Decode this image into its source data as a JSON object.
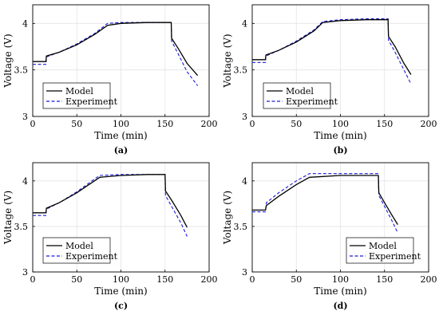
{
  "chart_data": [
    {
      "type": "line",
      "panel_label": "(a)",
      "xlabel": "Time (min)",
      "ylabel": "Voltage (V)",
      "xlim": [
        0,
        200
      ],
      "ylim": [
        3,
        4.2
      ],
      "xticks": [
        0,
        50,
        100,
        150,
        200
      ],
      "yticks": [
        3,
        3.5,
        4
      ],
      "ytick_labels": [
        "3",
        "3.5",
        "4"
      ],
      "grid": true,
      "legend_position": "lower-left",
      "series": [
        {
          "name": "Model",
          "color": "#000000",
          "dashed": false,
          "x": [
            0,
            15,
            15.5,
            30,
            50,
            70,
            85,
            100,
            130,
            157,
            157.5,
            165,
            175,
            187
          ],
          "y": [
            3.59,
            3.59,
            3.65,
            3.69,
            3.77,
            3.88,
            3.98,
            4.0,
            4.01,
            4.01,
            3.84,
            3.73,
            3.57,
            3.44
          ]
        },
        {
          "name": "Experiment",
          "color": "#1a1adc",
          "dashed": true,
          "x": [
            0,
            15,
            15.5,
            30,
            50,
            70,
            85,
            100,
            130,
            157,
            157.5,
            165,
            175,
            187
          ],
          "y": [
            3.56,
            3.56,
            3.64,
            3.69,
            3.78,
            3.89,
            4.0,
            4.01,
            4.01,
            4.01,
            3.81,
            3.67,
            3.48,
            3.33
          ]
        }
      ]
    },
    {
      "type": "line",
      "panel_label": "(b)",
      "xlabel": "Time (min)",
      "ylabel": "Voltage (V)",
      "xlim": [
        0,
        200
      ],
      "ylim": [
        3,
        4.2
      ],
      "xticks": [
        0,
        50,
        100,
        150,
        200
      ],
      "yticks": [
        3,
        3.5,
        4
      ],
      "ytick_labels": [
        "3",
        "3.5",
        "4"
      ],
      "grid": true,
      "legend_position": "lower-left",
      "series": [
        {
          "name": "Model",
          "color": "#000000",
          "dashed": false,
          "x": [
            0,
            15,
            15.5,
            30,
            50,
            70,
            80,
            100,
            130,
            154,
            154.5,
            162,
            172,
            180
          ],
          "y": [
            3.61,
            3.61,
            3.66,
            3.71,
            3.8,
            3.92,
            4.01,
            4.03,
            4.04,
            4.04,
            3.86,
            3.75,
            3.57,
            3.45
          ]
        },
        {
          "name": "Experiment",
          "color": "#1a1adc",
          "dashed": true,
          "x": [
            0,
            15,
            15.5,
            30,
            50,
            70,
            80,
            100,
            130,
            154,
            154.5,
            162,
            172,
            180
          ],
          "y": [
            3.58,
            3.58,
            3.65,
            3.71,
            3.81,
            3.93,
            4.02,
            4.04,
            4.05,
            4.05,
            3.82,
            3.69,
            3.5,
            3.35
          ]
        }
      ]
    },
    {
      "type": "line",
      "panel_label": "(c)",
      "xlabel": "Time (min)",
      "ylabel": "Voltage (V)",
      "xlim": [
        0,
        200
      ],
      "ylim": [
        3,
        4.2
      ],
      "xticks": [
        0,
        50,
        100,
        150,
        200
      ],
      "yticks": [
        3,
        3.5,
        4
      ],
      "ytick_labels": [
        "3",
        "3.5",
        "4"
      ],
      "grid": true,
      "legend_position": "lower-left",
      "series": [
        {
          "name": "Model",
          "color": "#000000",
          "dashed": false,
          "x": [
            0,
            15,
            15.5,
            30,
            50,
            70,
            76,
            100,
            130,
            150,
            150.5,
            158,
            168,
            175
          ],
          "y": [
            3.65,
            3.65,
            3.7,
            3.76,
            3.87,
            4.0,
            4.04,
            4.06,
            4.07,
            4.07,
            3.89,
            3.78,
            3.62,
            3.49
          ]
        },
        {
          "name": "Experiment",
          "color": "#1a1adc",
          "dashed": true,
          "x": [
            0,
            15,
            15.5,
            30,
            50,
            70,
            76,
            100,
            130,
            150,
            150.5,
            158,
            168,
            175
          ],
          "y": [
            3.62,
            3.62,
            3.69,
            3.76,
            3.88,
            4.02,
            4.06,
            4.07,
            4.07,
            4.07,
            3.84,
            3.71,
            3.54,
            3.39
          ]
        }
      ]
    },
    {
      "type": "line",
      "panel_label": "(d)",
      "xlabel": "Time (min)",
      "ylabel": "Voltage (V)",
      "xlim": [
        0,
        200
      ],
      "ylim": [
        3,
        4.2
      ],
      "xticks": [
        0,
        50,
        100,
        150,
        200
      ],
      "yticks": [
        3,
        3.5,
        4
      ],
      "ytick_labels": [
        "3",
        "3.5",
        "4"
      ],
      "grid": true,
      "legend_position": "lower-right",
      "series": [
        {
          "name": "Model",
          "color": "#000000",
          "dashed": false,
          "x": [
            0,
            15,
            16,
            30,
            50,
            65,
            100,
            120,
            143,
            143.5,
            150,
            158,
            165
          ],
          "y": [
            3.68,
            3.68,
            3.73,
            3.83,
            3.96,
            4.04,
            4.06,
            4.06,
            4.06,
            3.87,
            3.76,
            3.63,
            3.52
          ]
        },
        {
          "name": "Experiment",
          "color": "#1a1adc",
          "dashed": true,
          "x": [
            0,
            15,
            16,
            30,
            50,
            65,
            100,
            120,
            143,
            143.5,
            150,
            158,
            165
          ],
          "y": [
            3.66,
            3.66,
            3.76,
            3.87,
            4.0,
            4.08,
            4.08,
            4.08,
            4.08,
            3.84,
            3.72,
            3.57,
            3.43
          ]
        }
      ]
    }
  ]
}
